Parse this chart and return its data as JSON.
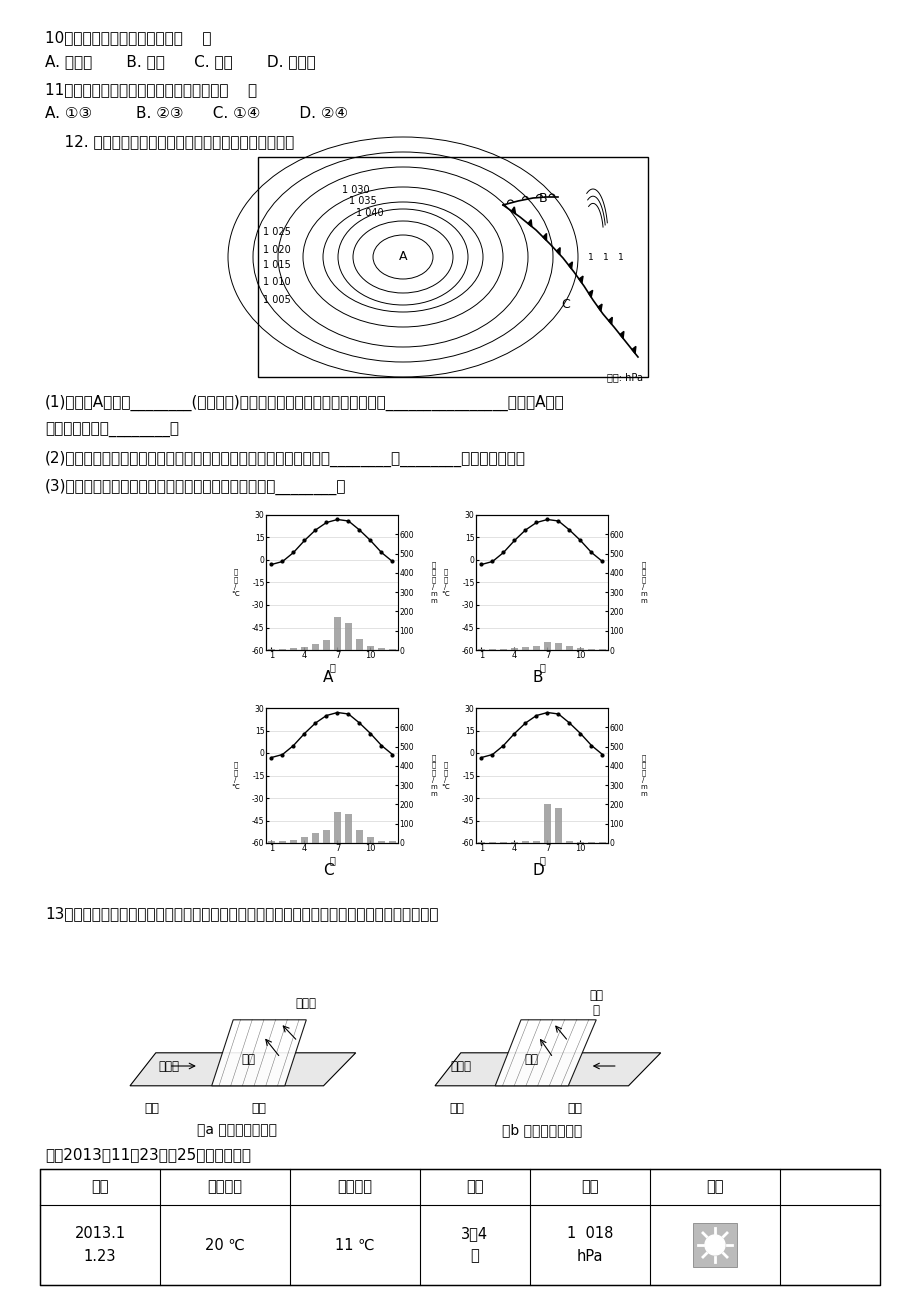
{
  "background_color": "#ffffff",
  "q10_text": "10．图示区域内风力较大的是（    ）",
  "q10_options": "A. 东北部       B. 东部      C. 南部       D. 西北部",
  "q11_text": "11．图中如果存在着降水现象，则可能是（    ）",
  "q11_options": "A. ①③         B. ②③      C. ①④        D. ②④",
  "q12_text": "    12. 读我国部分地区地面天气形势图，回答下列问题。",
  "q12_sub1": "(1)此时，A地处于________(天气系统)控制下，其中心气流在水平方向上呈________________流动，A地此",
  "q12_sub1b": "时的天气状况是________。",
  "q12_sub2": "(2)如果该天气形势出现在春季，那么我国西北、华北地区有可能出现________和________等灾害性天气。",
  "q12_sub3": "(3)下列四幅图中，符合我国华北地区主要气候类型的是________。",
  "q13_intro": "13．锋面是全球最主要的天气系统之一，在中纬度地区最为常见。读图表资料，完成下列问题。",
  "table_title": "上海2013年11月23日至25日的气象数据",
  "table_headers": [
    "日期",
    "最高气温",
    "最低气温",
    "风力",
    "气压",
    "天气"
  ],
  "chart_A_temp": [
    -3,
    -1,
    5,
    13,
    20,
    25,
    27,
    26,
    20,
    13,
    5,
    -1
  ],
  "chart_A_precip": [
    3,
    5,
    8,
    15,
    30,
    50,
    170,
    140,
    55,
    20,
    8,
    3
  ],
  "chart_B_temp": [
    -3,
    -1,
    5,
    13,
    20,
    25,
    27,
    26,
    20,
    13,
    5,
    -1
  ],
  "chart_B_precip": [
    3,
    4,
    6,
    10,
    15,
    20,
    40,
    35,
    20,
    10,
    5,
    3
  ],
  "chart_C_temp": [
    -3,
    -1,
    5,
    13,
    20,
    25,
    27,
    26,
    20,
    13,
    5,
    -1
  ],
  "chart_C_precip": [
    8,
    10,
    18,
    30,
    50,
    70,
    160,
    150,
    70,
    30,
    12,
    8
  ],
  "chart_D_temp": [
    -3,
    -1,
    5,
    13,
    20,
    25,
    27,
    26,
    20,
    13,
    5,
    -1
  ],
  "chart_D_precip": [
    3,
    3,
    5,
    5,
    8,
    8,
    200,
    180,
    10,
    5,
    3,
    3
  ]
}
